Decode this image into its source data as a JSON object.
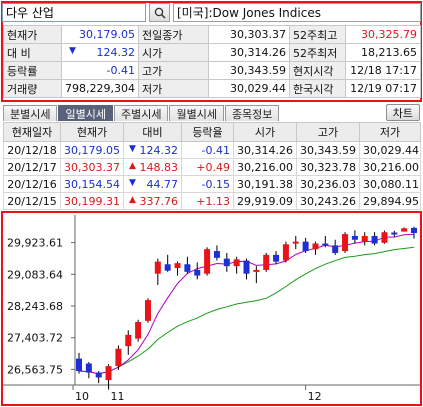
{
  "search": {
    "value": "다우 산업"
  },
  "index": {
    "name": "[미국]:Dow Jones Indices"
  },
  "quote": {
    "rows": [
      [
        {
          "t": "현재가"
        },
        {
          "t": "30,179.05",
          "c": "blue"
        },
        {
          "t": "전일종가"
        },
        {
          "t": "30,303.37"
        },
        {
          "t": "52주최고"
        },
        {
          "t": "30,325.79",
          "c": "red"
        }
      ],
      [
        {
          "t": "대  비"
        },
        {
          "t": "124.32",
          "c": "blue",
          "arrow": "▼"
        },
        {
          "t": "시가"
        },
        {
          "t": "30,314.26"
        },
        {
          "t": "52주최저"
        },
        {
          "t": "18,213.65"
        }
      ],
      [
        {
          "t": "등락률"
        },
        {
          "t": "-0.41",
          "c": "blue"
        },
        {
          "t": "고가"
        },
        {
          "t": "30,343.59"
        },
        {
          "t": "현지시각"
        },
        {
          "t": "12/18 17:17"
        }
      ],
      [
        {
          "t": "거래량"
        },
        {
          "t": "798,229,304"
        },
        {
          "t": "저가"
        },
        {
          "t": "30,029.44"
        },
        {
          "t": "한국시각"
        },
        {
          "t": "12/19 07:17"
        }
      ]
    ]
  },
  "tabs": [
    {
      "label": "분별시세",
      "active": false
    },
    {
      "label": "일별시세",
      "active": true
    },
    {
      "label": "주별시세",
      "active": false
    },
    {
      "label": "월별시세",
      "active": false
    },
    {
      "label": "종목정보",
      "active": false
    }
  ],
  "chart_button": {
    "label": "차트"
  },
  "daily": {
    "headers": [
      "현재일자",
      "현재가",
      "대비",
      "등락율",
      "시가",
      "고가",
      "저가"
    ],
    "rows": [
      {
        "date": "20/12/18",
        "price": "30,179.05",
        "dir": "down",
        "change": "124.32",
        "rate": "-0.41",
        "open": "30,314.26",
        "high": "30,343.59",
        "low": "30,029.44"
      },
      {
        "date": "20/12/17",
        "price": "30,303.37",
        "dir": "up",
        "change": "148.83",
        "rate": "+0.49",
        "open": "30,216.00",
        "high": "30,323.78",
        "low": "30,216.00"
      },
      {
        "date": "20/12/16",
        "price": "30,154.54",
        "dir": "down",
        "change": "44.77",
        "rate": "-0.15",
        "open": "30,191.38",
        "high": "30,236.03",
        "low": "30,080.11"
      },
      {
        "date": "20/12/15",
        "price": "30,199.31",
        "dir": "up",
        "change": "337.76",
        "rate": "+1.13",
        "open": "29,919.09",
        "high": "30,243.26",
        "low": "29,894.95"
      }
    ]
  },
  "colors": {
    "up": "#e8141a",
    "down": "#1f2fd6",
    "ma_short": "#b000c8",
    "ma_long": "#1a9a1a",
    "accent_frame": "#e8141a"
  },
  "chart_data": {
    "type": "candlestick",
    "y_ticks": [
      "29,923.61",
      "29,083.64",
      "28,243.68",
      "27,403.72",
      "26,563.75"
    ],
    "y_tick_values": [
      29923.61,
      29083.64,
      28243.68,
      27403.72,
      26563.75
    ],
    "x_ticks": [
      {
        "label": "10",
        "index": 0
      },
      {
        "label": "11",
        "index": 3
      },
      {
        "label": "12",
        "index": 23
      }
    ],
    "ylim": [
      26150,
      30550
    ],
    "candles": [
      {
        "o": 26850,
        "h": 27000,
        "l": 26450,
        "c": 26520
      },
      {
        "o": 26720,
        "h": 26760,
        "l": 26330,
        "c": 26480
      },
      {
        "o": 26480,
        "h": 26520,
        "l": 26200,
        "c": 26350
      },
      {
        "o": 26280,
        "h": 26700,
        "l": 26050,
        "c": 26650
      },
      {
        "o": 26650,
        "h": 27200,
        "l": 26550,
        "c": 27110
      },
      {
        "o": 27180,
        "h": 27600,
        "l": 26950,
        "c": 27480
      },
      {
        "o": 27380,
        "h": 27880,
        "l": 27300,
        "c": 27820
      },
      {
        "o": 27850,
        "h": 28450,
        "l": 27800,
        "c": 28400
      },
      {
        "o": 29100,
        "h": 29500,
        "l": 28800,
        "c": 29420
      },
      {
        "o": 29350,
        "h": 29600,
        "l": 29150,
        "c": 29180
      },
      {
        "o": 29250,
        "h": 29420,
        "l": 29050,
        "c": 29380
      },
      {
        "o": 29350,
        "h": 29550,
        "l": 29100,
        "c": 29150
      },
      {
        "o": 29200,
        "h": 29400,
        "l": 28950,
        "c": 29050
      },
      {
        "o": 29100,
        "h": 29800,
        "l": 29050,
        "c": 29750
      },
      {
        "o": 29700,
        "h": 29850,
        "l": 29450,
        "c": 29520
      },
      {
        "o": 29500,
        "h": 29650,
        "l": 29150,
        "c": 29300
      },
      {
        "o": 29300,
        "h": 29550,
        "l": 29100,
        "c": 29480
      },
      {
        "o": 29450,
        "h": 29500,
        "l": 28950,
        "c": 29100
      },
      {
        "o": 29150,
        "h": 29300,
        "l": 28850,
        "c": 29200
      },
      {
        "o": 29200,
        "h": 29650,
        "l": 29150,
        "c": 29600
      },
      {
        "o": 29600,
        "h": 29700,
        "l": 29350,
        "c": 29420
      },
      {
        "o": 29450,
        "h": 29950,
        "l": 29400,
        "c": 29880
      },
      {
        "o": 29900,
        "h": 30100,
        "l": 29750,
        "c": 29950
      },
      {
        "o": 29950,
        "h": 30050,
        "l": 29650,
        "c": 29700
      },
      {
        "o": 29750,
        "h": 29950,
        "l": 29600,
        "c": 29900
      },
      {
        "o": 29900,
        "h": 30100,
        "l": 29800,
        "c": 29850
      },
      {
        "o": 29850,
        "h": 30000,
        "l": 29600,
        "c": 29650
      },
      {
        "o": 29700,
        "h": 30200,
        "l": 29650,
        "c": 30150
      },
      {
        "o": 30100,
        "h": 30250,
        "l": 29900,
        "c": 30000
      },
      {
        "o": 29950,
        "h": 30200,
        "l": 29850,
        "c": 30100
      },
      {
        "o": 30100,
        "h": 30200,
        "l": 29850,
        "c": 29900
      },
      {
        "o": 29919.09,
        "h": 30243.26,
        "l": 29894.95,
        "c": 30199.31
      },
      {
        "o": 30191.38,
        "h": 30236.03,
        "l": 30080.11,
        "c": 30154.54
      },
      {
        "o": 30216.0,
        "h": 30323.78,
        "l": 30216.0,
        "c": 30303.37
      },
      {
        "o": 30314.26,
        "h": 30343.59,
        "l": 30029.44,
        "c": 30179.05
      }
    ],
    "ma_short_period": 5,
    "ma_long_period": 20
  }
}
